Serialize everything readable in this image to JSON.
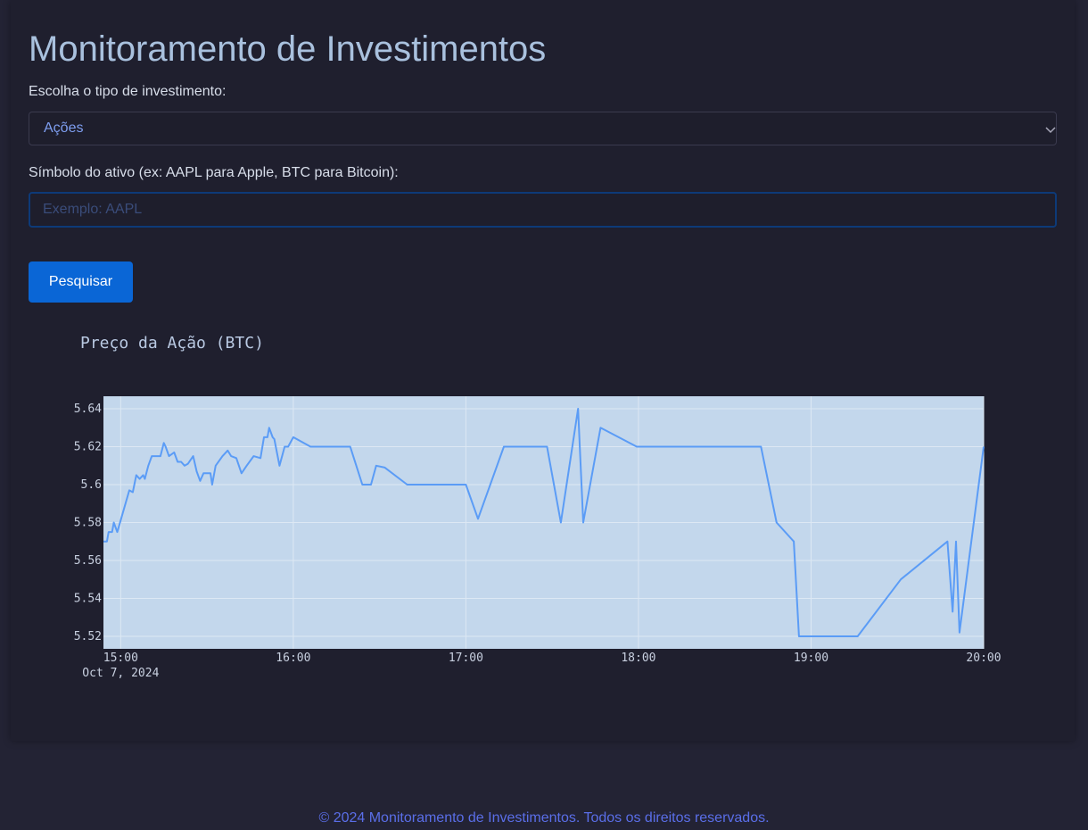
{
  "header": {
    "title": "Monitoramento de Investimentos"
  },
  "form": {
    "type_label": "Escolha o tipo de investimento:",
    "type_selected": "Ações",
    "symbol_label": "Símbolo do ativo (ex: AAPL para Apple, BTC para Bitcoin):",
    "symbol_placeholder": "Exemplo: AAPL",
    "button": "Pesquisar"
  },
  "chart_data": {
    "type": "line",
    "title": "Preço da Ação (BTC)",
    "color": "#5b9cf6",
    "grid": true,
    "x_date_label": "Oct 7, 2024",
    "x": [
      14.9,
      14.92,
      14.93,
      14.95,
      14.96,
      14.98,
      14.99,
      15.05,
      15.07,
      15.09,
      15.11,
      15.13,
      15.14,
      15.16,
      15.18,
      15.23,
      15.25,
      15.26,
      15.28,
      15.31,
      15.33,
      15.35,
      15.37,
      15.39,
      15.42,
      15.44,
      15.46,
      15.48,
      15.52,
      15.53,
      15.55,
      15.59,
      15.62,
      15.64,
      15.67,
      15.7,
      15.73,
      15.77,
      15.81,
      15.83,
      15.85,
      15.86,
      15.88,
      15.89,
      15.92,
      15.95,
      15.97,
      16.0,
      16.1,
      16.33,
      16.4,
      16.45,
      16.48,
      16.53,
      16.66,
      17.0,
      17.07,
      17.22,
      17.47,
      17.55,
      17.65,
      17.68,
      17.78,
      17.99,
      18.1,
      18.71,
      18.8,
      18.9,
      18.93,
      19.27,
      19.52,
      19.79,
      19.82,
      19.84,
      19.86,
      20.0
    ],
    "values": [
      5.57,
      5.57,
      5.575,
      5.575,
      5.58,
      5.575,
      5.578,
      5.597,
      5.596,
      5.605,
      5.603,
      5.605,
      5.603,
      5.61,
      5.615,
      5.615,
      5.622,
      5.62,
      5.615,
      5.617,
      5.612,
      5.612,
      5.61,
      5.611,
      5.615,
      5.607,
      5.602,
      5.606,
      5.606,
      5.6,
      5.61,
      5.615,
      5.618,
      5.615,
      5.614,
      5.606,
      5.61,
      5.615,
      5.614,
      5.625,
      5.625,
      5.63,
      5.625,
      5.624,
      5.61,
      5.62,
      5.62,
      5.625,
      5.62,
      5.62,
      5.6,
      5.6,
      5.61,
      5.609,
      5.6,
      5.6,
      5.582,
      5.62,
      5.62,
      5.58,
      5.64,
      5.58,
      5.63,
      5.62,
      5.62,
      5.62,
      5.58,
      5.57,
      5.52,
      5.52,
      5.55,
      5.57,
      5.533,
      5.57,
      5.522,
      5.62
    ],
    "xlim": [
      14.9,
      20.0
    ],
    "xticks": [
      {
        "value": 15,
        "label": "15:00"
      },
      {
        "value": 16,
        "label": "16:00"
      },
      {
        "value": 17,
        "label": "17:00"
      },
      {
        "value": 18,
        "label": "18:00"
      },
      {
        "value": 19,
        "label": "19:00"
      },
      {
        "value": 20,
        "label": "20:00"
      }
    ],
    "ylim": [
      5.5134,
      5.6466
    ],
    "yticks": [
      5.52,
      5.54,
      5.56,
      5.58,
      5.6,
      5.62,
      5.64
    ]
  },
  "footer": {
    "text": "© 2024 Monitoramento de Investimentos. Todos os direitos reservados."
  }
}
